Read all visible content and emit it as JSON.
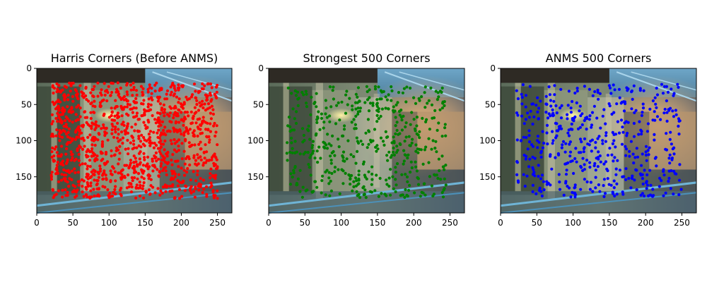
{
  "chart_data": [
    {
      "type": "scatter",
      "title": "Harris Corners (Before ANMS)",
      "xlim": [
        0,
        270
      ],
      "ylim": [
        200,
        0
      ],
      "xticks": [
        0,
        50,
        100,
        150,
        200,
        250
      ],
      "yticks": [
        0,
        50,
        100,
        150
      ],
      "point_color": "#ff0000",
      "point_count": 1200,
      "region": {
        "x": [
          20,
          250
        ],
        "y": [
          20,
          180
        ]
      }
    },
    {
      "type": "scatter",
      "title": "Strongest 500 Corners",
      "xlim": [
        0,
        270
      ],
      "ylim": [
        200,
        0
      ],
      "xticks": [
        0,
        50,
        100,
        150,
        200,
        250
      ],
      "yticks": [
        0,
        50,
        100,
        150
      ],
      "point_color": "#008000",
      "point_count": 500,
      "region": {
        "x": [
          25,
          245
        ],
        "y": [
          25,
          180
        ]
      }
    },
    {
      "type": "scatter",
      "title": "ANMS 500 Corners",
      "xlim": [
        0,
        270
      ],
      "ylim": [
        200,
        0
      ],
      "xticks": [
        0,
        50,
        100,
        150,
        200,
        250
      ],
      "yticks": [
        0,
        50,
        100,
        150
      ],
      "point_color": "#0000ff",
      "point_count": 500,
      "region": {
        "x": [
          22,
          250
        ],
        "y": [
          22,
          178
        ]
      }
    }
  ],
  "colors": {
    "red_points": "#ff0000",
    "green_points": "#008000",
    "blue_points": "#0000ff"
  }
}
